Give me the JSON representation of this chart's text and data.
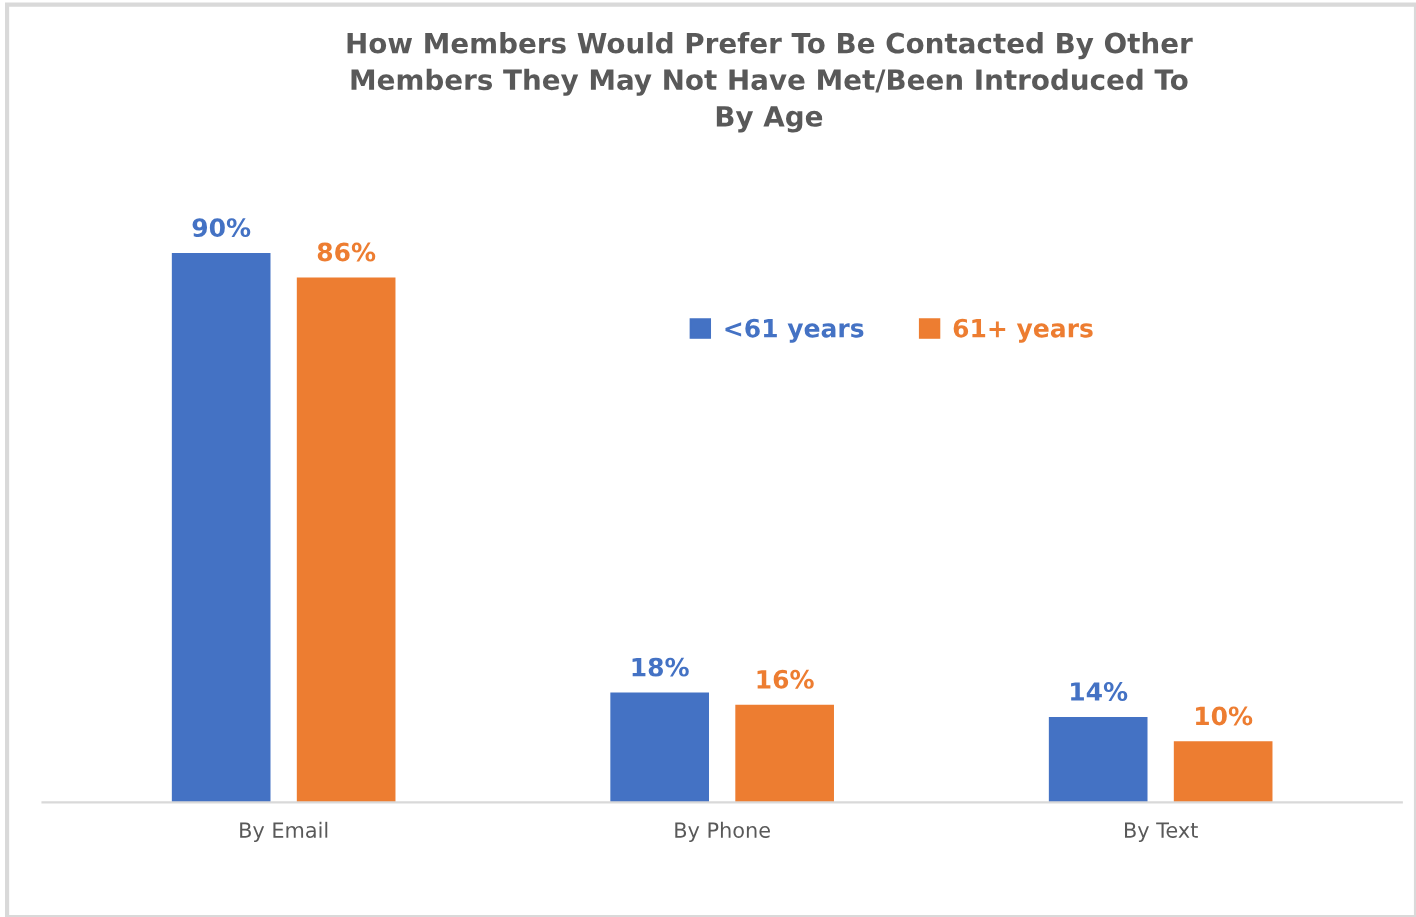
{
  "chart_data": {
    "type": "bar",
    "title": "How Members Would Prefer To Be Contacted By Other\nMembers They May Not Have Met/Been Introduced To\nBy Age",
    "categories": [
      "By Email",
      "By Phone",
      "By Text"
    ],
    "series": [
      {
        "name": "<61 years",
        "color": "#4472c4",
        "values": [
          90,
          18,
          14
        ],
        "value_labels": [
          "90%",
          "18%",
          "14%"
        ]
      },
      {
        "name": "61+ years",
        "color": "#ed7d31",
        "values": [
          86,
          16,
          10
        ],
        "value_labels": [
          "86%",
          "16%",
          "10%"
        ]
      }
    ],
    "legend": "top right",
    "grid": false,
    "tick_labels": "x"
  }
}
